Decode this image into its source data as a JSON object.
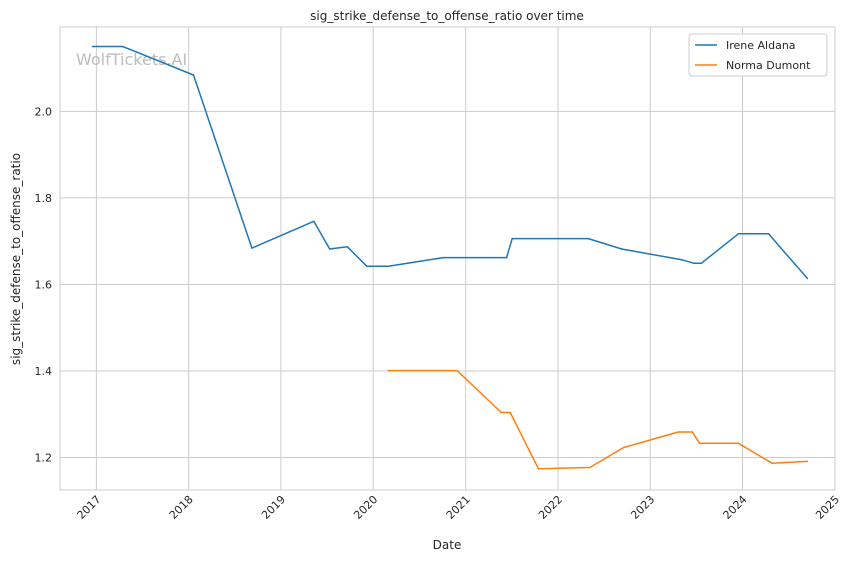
{
  "watermark": "WolfTickets.AI",
  "chart_data": {
    "type": "line",
    "title": "sig_strike_defense_to_offense_ratio over time",
    "xlabel": "Date",
    "ylabel": "sig_strike_defense_to_offense_ratio",
    "xlim": [
      "2016-08-10",
      "2025-01-01"
    ],
    "ylim": [
      1.125,
      2.195
    ],
    "x_ticks": [
      "2017-01-01",
      "2018-01-01",
      "2019-01-01",
      "2020-01-01",
      "2021-01-01",
      "2022-01-01",
      "2023-01-01",
      "2024-01-01",
      "2025-01-01"
    ],
    "x_tick_labels": [
      "2017",
      "2018",
      "2019",
      "2020",
      "2021",
      "2022",
      "2023",
      "2024",
      "2025"
    ],
    "y_ticks": [
      1.2,
      1.4,
      1.6,
      1.8,
      2.0
    ],
    "y_tick_labels": [
      "1.2",
      "1.4",
      "1.6",
      "1.8",
      "2.0"
    ],
    "grid": true,
    "legend_position": "top-right",
    "series": [
      {
        "name": "Irene Aldana",
        "color": "#1f77b4",
        "points": [
          [
            "2016-12-17",
            2.15
          ],
          [
            "2017-04-15",
            2.15
          ],
          [
            "2018-01-20",
            2.084
          ],
          [
            "2018-09-08",
            1.684
          ],
          [
            "2019-05-11",
            1.746
          ],
          [
            "2019-07-13",
            1.682
          ],
          [
            "2019-09-21",
            1.687
          ],
          [
            "2019-12-07",
            1.642
          ],
          [
            "2020-03-01",
            1.642
          ],
          [
            "2020-10-04",
            1.662
          ],
          [
            "2021-06-12",
            1.662
          ],
          [
            "2021-07-04",
            1.706
          ],
          [
            "2022-05-01",
            1.706
          ],
          [
            "2022-09-10",
            1.682
          ],
          [
            "2023-05-06",
            1.657
          ],
          [
            "2023-06-24",
            1.649
          ],
          [
            "2023-07-22",
            1.649
          ],
          [
            "2023-12-16",
            1.717
          ],
          [
            "2024-04-13",
            1.717
          ],
          [
            "2024-09-14",
            1.614
          ]
        ]
      },
      {
        "name": "Norma Dumont",
        "color": "#ff7f0e",
        "points": [
          [
            "2020-02-29",
            1.401
          ],
          [
            "2020-11-28",
            1.401
          ],
          [
            "2021-05-22",
            1.304
          ],
          [
            "2021-06-26",
            1.304
          ],
          [
            "2021-10-16",
            1.174
          ],
          [
            "2022-05-07",
            1.177
          ],
          [
            "2022-09-17",
            1.223
          ],
          [
            "2023-04-22",
            1.259
          ],
          [
            "2023-06-17",
            1.259
          ],
          [
            "2023-07-15",
            1.233
          ],
          [
            "2023-12-16",
            1.233
          ],
          [
            "2024-04-27",
            1.187
          ],
          [
            "2024-09-14",
            1.191
          ]
        ]
      }
    ]
  }
}
